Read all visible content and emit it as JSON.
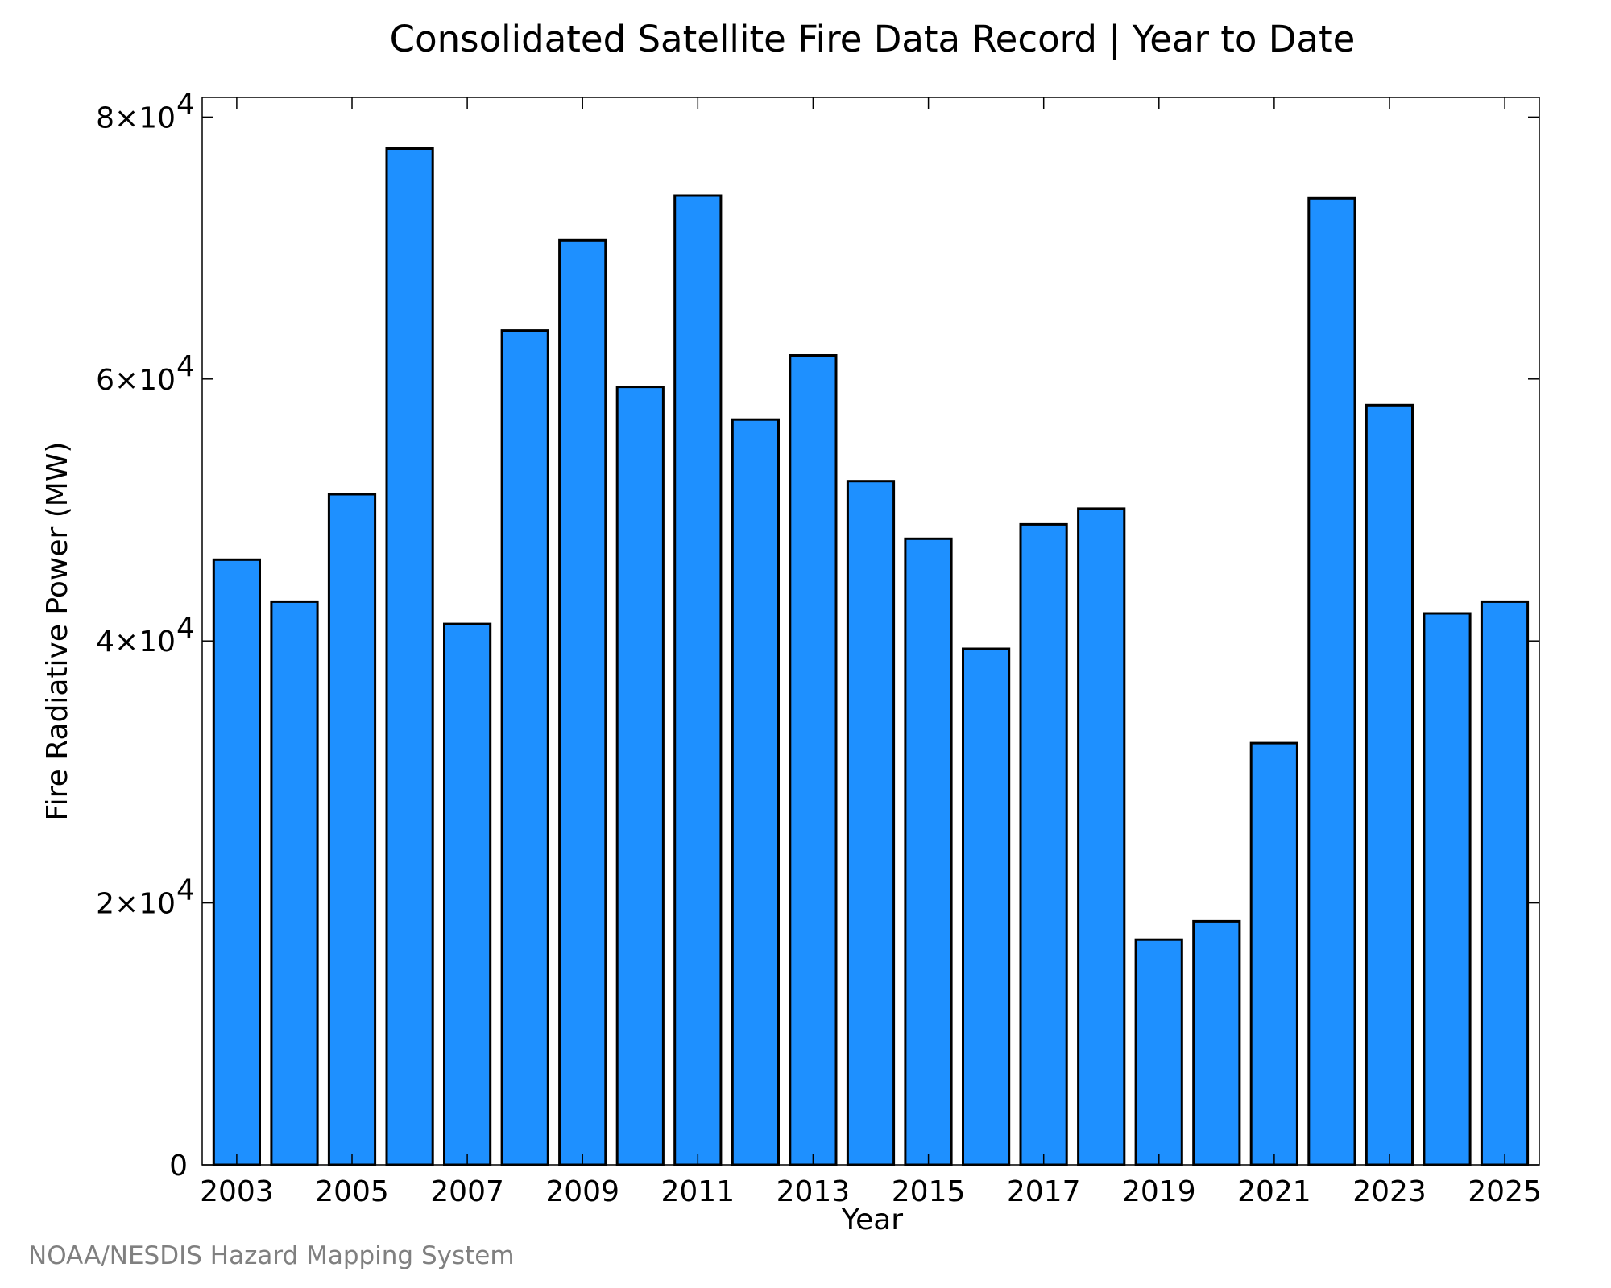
{
  "chart_data": {
    "type": "bar",
    "title": "Consolidated Satellite Fire Data Record | Year to Date",
    "xlabel": "Year",
    "ylabel": "Fire Radiative Power (MW)",
    "categories": [
      "2003",
      "2004",
      "2005",
      "2006",
      "2007",
      "2008",
      "2009",
      "2010",
      "2011",
      "2012",
      "2013",
      "2014",
      "2015",
      "2016",
      "2017",
      "2018",
      "2019",
      "2020",
      "2021",
      "2022",
      "2023",
      "2024",
      "2025"
    ],
    "values": [
      46200,
      43000,
      51200,
      77600,
      41300,
      63700,
      70600,
      59400,
      74000,
      56900,
      61800,
      52200,
      47800,
      39400,
      48900,
      50100,
      17200,
      18600,
      32200,
      73800,
      58000,
      42100,
      43000
    ],
    "x_tick_labels": [
      "2003",
      "2005",
      "2007",
      "2009",
      "2011",
      "2013",
      "2015",
      "2017",
      "2019",
      "2021",
      "2023",
      "2025"
    ],
    "y_ticks": [
      {
        "value": 0,
        "mantissa": "0",
        "exponent": ""
      },
      {
        "value": 20000,
        "mantissa": "2×10",
        "exponent": "4"
      },
      {
        "value": 40000,
        "mantissa": "4×10",
        "exponent": "4"
      },
      {
        "value": 60000,
        "mantissa": "6×10",
        "exponent": "4"
      },
      {
        "value": 80000,
        "mantissa": "8×10",
        "exponent": "4"
      }
    ],
    "ylim": [
      0,
      81500
    ],
    "xlim": [
      2002.4,
      2025.6
    ],
    "grid": false,
    "legend": "none",
    "bar_color": "#1e90ff",
    "edge_color": "#000000"
  },
  "credit": "NOAA/NESDIS Hazard Mapping System"
}
